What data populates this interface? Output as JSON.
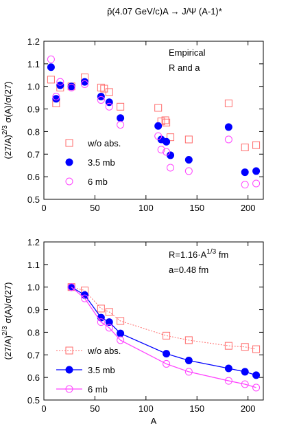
{
  "chart_data": [
    {
      "type": "scatter",
      "title": "p̄(4.07 GeV/c)A → J/Ψ (A-1)*",
      "annotation_lines": [
        "Empirical",
        "R and a"
      ],
      "xlabel": "",
      "ylabel": "(27/A)^2/3 σ(A)/σ(27)",
      "xlim": [
        0,
        215
      ],
      "ylim": [
        0.5,
        1.2
      ],
      "xticks": [
        "0",
        "50",
        "100",
        "150",
        "200"
      ],
      "yticks": [
        "0.5",
        "0.6",
        "0.7",
        "0.8",
        "0.9",
        "1.0",
        "1.1",
        "1.2"
      ],
      "legend_position": "lower-left",
      "series": [
        {
          "name": "w/o abs.",
          "marker": "open-square",
          "color": "#ff6b6b",
          "connected": false,
          "x": [
            7,
            12,
            16,
            27,
            40,
            56,
            59,
            64,
            75,
            112,
            115,
            119,
            120,
            124,
            142,
            181,
            197,
            208
          ],
          "y": [
            1.03,
            0.925,
            0.995,
            1.0,
            1.04,
            0.995,
            0.99,
            0.975,
            0.91,
            0.905,
            0.845,
            0.85,
            0.84,
            0.775,
            0.765,
            0.925,
            0.73,
            0.74
          ]
        },
        {
          "name": "3.5 mb",
          "marker": "filled-circle",
          "color": "#0000ff",
          "connected": false,
          "x": [
            7,
            12,
            16,
            27,
            40,
            56,
            64,
            75,
            112,
            115,
            120,
            124,
            142,
            181,
            197,
            208
          ],
          "y": [
            1.085,
            0.945,
            1.005,
            1.0,
            1.02,
            0.955,
            0.93,
            0.86,
            0.825,
            0.765,
            0.755,
            0.695,
            0.675,
            0.82,
            0.62,
            0.625
          ]
        },
        {
          "name": "6 mb",
          "marker": "open-circle",
          "color": "#ff44ff",
          "connected": false,
          "x": [
            7,
            12,
            16,
            27,
            40,
            56,
            64,
            75,
            112,
            115,
            120,
            124,
            142,
            181,
            197,
            208
          ],
          "y": [
            1.12,
            0.955,
            1.02,
            0.995,
            1.01,
            0.94,
            0.91,
            0.83,
            0.78,
            0.72,
            0.71,
            0.64,
            0.625,
            0.765,
            0.565,
            0.57
          ]
        }
      ]
    },
    {
      "type": "line",
      "title": "",
      "annotation_lines": [
        "R=1.16·A^1/3 fm",
        "a=0.48 fm"
      ],
      "xlabel": "A",
      "ylabel": "(27/A)^2/3 σ(A)/σ(27)",
      "xlim": [
        0,
        215
      ],
      "ylim": [
        0.5,
        1.2
      ],
      "xticks": [
        "0",
        "50",
        "100",
        "150",
        "200"
      ],
      "yticks": [
        "0.5",
        "0.6",
        "0.7",
        "0.8",
        "0.9",
        "1.0",
        "1.1",
        "1.2"
      ],
      "legend_position": "lower-left",
      "series": [
        {
          "name": "w/o abs.",
          "marker": "open-square",
          "line": "dotted",
          "color": "#ff6b6b",
          "connected": true,
          "x": [
            27,
            40,
            56,
            64,
            75,
            120,
            142,
            181,
            197,
            208
          ],
          "y": [
            1.0,
            0.985,
            0.905,
            0.89,
            0.85,
            0.785,
            0.765,
            0.74,
            0.735,
            0.725
          ]
        },
        {
          "name": "3.5 mb",
          "marker": "filled-circle",
          "line": "solid",
          "color": "#0000ff",
          "connected": true,
          "x": [
            27,
            40,
            56,
            64,
            75,
            120,
            142,
            181,
            197,
            208
          ],
          "y": [
            1.0,
            0.965,
            0.865,
            0.845,
            0.795,
            0.705,
            0.675,
            0.64,
            0.625,
            0.61
          ]
        },
        {
          "name": "6 mb",
          "marker": "open-circle",
          "line": "solid",
          "color": "#ff44ff",
          "connected": true,
          "x": [
            27,
            40,
            56,
            64,
            75,
            120,
            142,
            181,
            197,
            208
          ],
          "y": [
            1.0,
            0.95,
            0.845,
            0.82,
            0.765,
            0.66,
            0.625,
            0.585,
            0.57,
            0.555
          ]
        }
      ]
    }
  ]
}
